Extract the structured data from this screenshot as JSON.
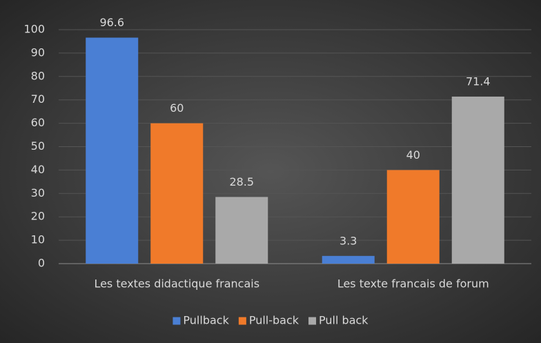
{
  "chart_data": {
    "type": "bar",
    "categories": [
      "Les textes didactique francais",
      "Les texte francais de forum"
    ],
    "series": [
      {
        "name": "Pullback",
        "color": "#4a7fd4",
        "values": [
          96.6,
          3.3
        ]
      },
      {
        "name": "Pull-back",
        "color": "#f07a2a",
        "values": [
          60,
          40
        ]
      },
      {
        "name": "Pull back",
        "color": "#a9a9a9",
        "values": [
          28.5,
          71.4
        ]
      }
    ],
    "ylim": [
      0,
      100
    ],
    "yticks": [
      0,
      10,
      20,
      30,
      40,
      50,
      60,
      70,
      80,
      90,
      100
    ],
    "grid": true,
    "legend": "bottom"
  }
}
